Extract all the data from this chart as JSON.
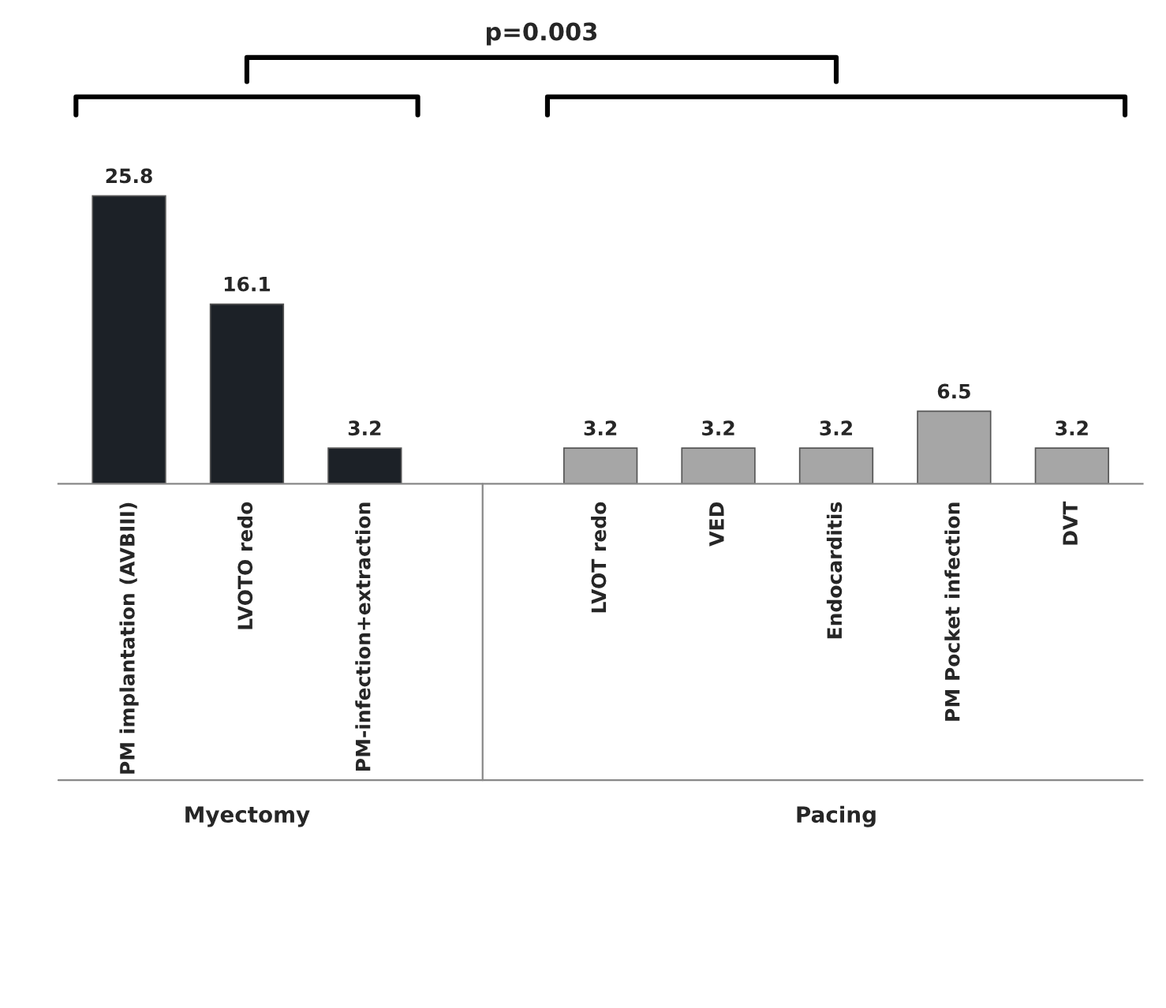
{
  "chart_data": {
    "type": "bar",
    "categories": [
      "PM implantation (AVBIII)",
      "LVOTO redo",
      "PM-infection+extraction",
      null,
      "LVOT redo",
      "VED",
      "Endocarditis",
      "PM Pocket infection",
      "DVT"
    ],
    "values": [
      25.8,
      16.1,
      3.2,
      null,
      3.2,
      3.2,
      3.2,
      6.5,
      3.2
    ],
    "colors": [
      "#1c2127",
      "#1c2127",
      "#1c2127",
      "#ffffff",
      "#a6a6a6",
      "#a6a6a6",
      "#a6a6a6",
      "#a6a6a6",
      "#a6a6a6"
    ],
    "data_labels": true,
    "grid": false,
    "legend": false,
    "annotations": [
      "p=0.003",
      "Myectomy",
      "Pacing"
    ]
  }
}
